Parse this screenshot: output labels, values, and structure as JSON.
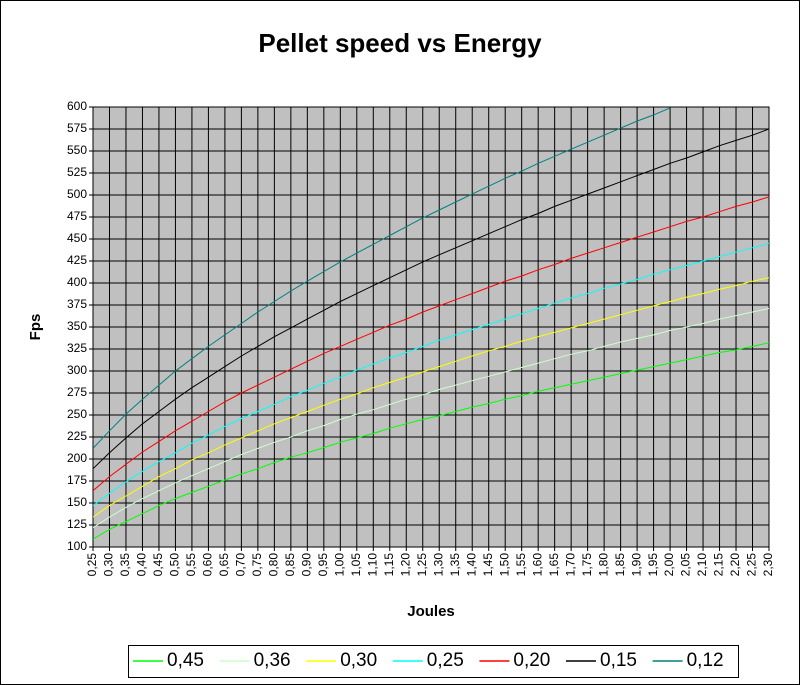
{
  "chart_data": {
    "type": "line",
    "title": "Pellet speed vs Energy",
    "x_label": "Joules",
    "y_label": "Fps",
    "categories": [
      "0,25",
      "0,30",
      "0,35",
      "0,40",
      "0,45",
      "0,50",
      "0,55",
      "0,60",
      "0,65",
      "0,70",
      "0,75",
      "0,80",
      "0,85",
      "0,90",
      "0,95",
      "1,00",
      "1,05",
      "1,10",
      "1,15",
      "1,20",
      "1,25",
      "1,30",
      "1,35",
      "1,40",
      "1,45",
      "1,50",
      "1,55",
      "1,60",
      "1,65",
      "1,70",
      "1,75",
      "1,80",
      "1,85",
      "1,90",
      "1,95",
      "2,00",
      "2,05",
      "2,10",
      "2,15",
      "2,20",
      "2,25",
      "2,30"
    ],
    "series": [
      {
        "name": "0,45",
        "color": "#00ff00",
        "values": [
          109,
          120,
          129,
          138,
          147,
          155,
          162,
          169,
          176,
          183,
          189,
          196,
          202,
          207,
          213,
          219,
          224,
          229,
          235,
          240,
          245,
          249,
          254,
          259,
          263,
          268,
          272,
          277,
          281,
          285,
          289,
          293,
          297,
          301,
          305,
          309,
          313,
          317,
          321,
          324,
          328,
          332
        ]
      },
      {
        "name": "0,36",
        "color": "#ccffcc",
        "values": [
          122,
          134,
          145,
          155,
          164,
          173,
          181,
          189,
          197,
          205,
          212,
          219,
          225,
          232,
          238,
          245,
          251,
          256,
          262,
          268,
          273,
          279,
          284,
          289,
          294,
          299,
          304,
          309,
          314,
          319,
          323,
          328,
          333,
          337,
          341,
          346,
          350,
          354,
          359,
          363,
          367,
          371
        ]
      },
      {
        "name": "0,30",
        "color": "#ffff00",
        "values": [
          134,
          147,
          158,
          169,
          180,
          189,
          199,
          207,
          216,
          224,
          232,
          240,
          247,
          254,
          261,
          268,
          274,
          281,
          287,
          293,
          299,
          305,
          311,
          317,
          323,
          328,
          334,
          339,
          344,
          349,
          354,
          359,
          364,
          369,
          374,
          379,
          384,
          388,
          393,
          397,
          402,
          406
        ]
      },
      {
        "name": "0,25",
        "color": "#00ffff",
        "values": [
          147,
          161,
          174,
          186,
          197,
          207,
          218,
          227,
          237,
          246,
          254,
          262,
          271,
          278,
          286,
          293,
          301,
          308,
          315,
          321,
          328,
          335,
          341,
          347,
          353,
          359,
          365,
          371,
          377,
          383,
          388,
          394,
          399,
          404,
          410,
          415,
          420,
          425,
          430,
          435,
          440,
          445
        ]
      },
      {
        "name": "0,20",
        "color": "#ff0000",
        "values": [
          164,
          180,
          194,
          208,
          220,
          232,
          243,
          254,
          265,
          275,
          284,
          293,
          302,
          311,
          320,
          328,
          336,
          344,
          352,
          359,
          367,
          374,
          381,
          388,
          395,
          402,
          408,
          415,
          421,
          428,
          434,
          440,
          446,
          452,
          458,
          464,
          470,
          475,
          481,
          487,
          492,
          498
        ]
      },
      {
        "name": "0,15",
        "color": "#000000",
        "values": [
          189,
          207,
          224,
          240,
          254,
          268,
          281,
          293,
          305,
          317,
          328,
          339,
          349,
          359,
          369,
          379,
          388,
          397,
          406,
          415,
          424,
          432,
          440,
          448,
          456,
          464,
          472,
          479,
          487,
          494,
          501,
          508,
          515,
          522,
          529,
          536,
          542,
          549,
          556,
          562,
          568,
          575
        ]
      },
      {
        "name": "0,12",
        "color": "#008080",
        "values": [
          212,
          232,
          251,
          268,
          284,
          300,
          314,
          328,
          341,
          354,
          367,
          379,
          391,
          402,
          413,
          424,
          434,
          444,
          454,
          464,
          474,
          483,
          492,
          501,
          510,
          519,
          527,
          536,
          544,
          552,
          560,
          568,
          576,
          584,
          591,
          599,
          null,
          null,
          null,
          null,
          null,
          null
        ]
      }
    ],
    "ylim": [
      100,
      600
    ],
    "yticks": [
      100,
      125,
      150,
      175,
      200,
      225,
      250,
      275,
      300,
      325,
      350,
      375,
      400,
      425,
      450,
      475,
      500,
      525,
      550,
      575,
      600
    ],
    "grid": true,
    "plot_background": "#c0c0c0"
  }
}
